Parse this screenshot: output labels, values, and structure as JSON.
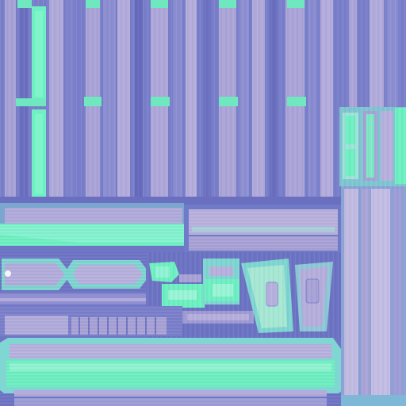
{
  "texture_atlas": {
    "description_visible_text": "",
    "colors": {
      "base_blue": "#6f76c6",
      "deep_blue": "#5e63b8",
      "lavender": "#a9a2d6",
      "lavender_light": "#bcb4df",
      "mint": "#6ff0c2",
      "mint_dark": "#4fd5aa",
      "cyan": "#7fd6d2",
      "marker_white": "#f4f4ff"
    },
    "regions": [
      "top-plank-grid",
      "upper-right-small-panel",
      "middle-left-rail",
      "middle-center-panel",
      "right-vertical-planks",
      "capsule-row",
      "mechanical-parts",
      "lower-long-bar",
      "bottom-rail"
    ]
  }
}
